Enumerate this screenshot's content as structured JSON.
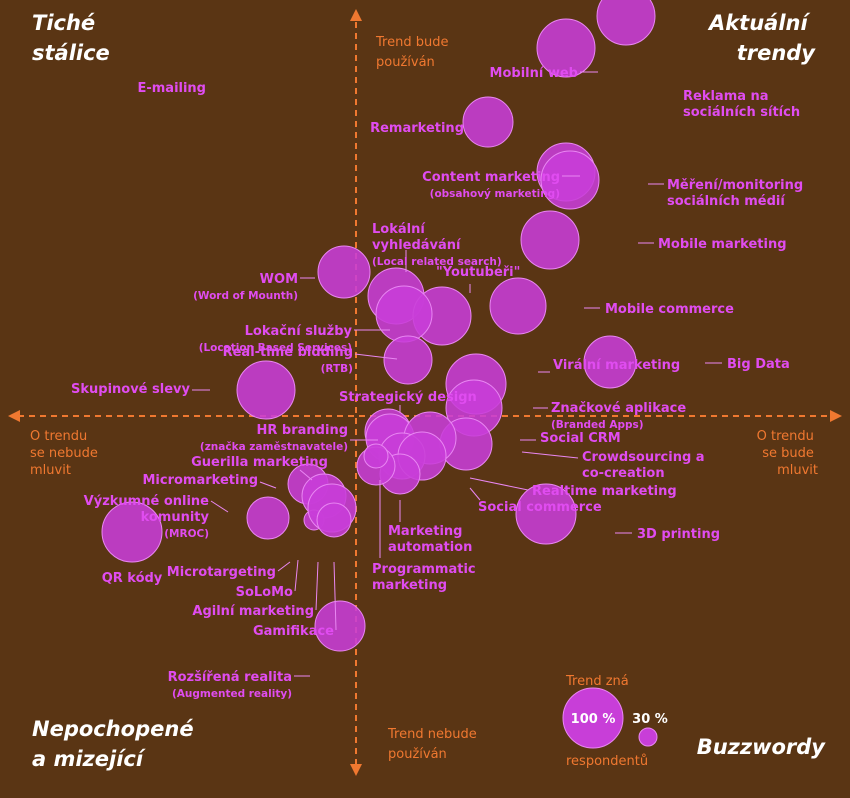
{
  "chart_data": {
    "type": "bubble-quadrant",
    "title": "",
    "quadrants": {
      "top_left": [
        "Tiché",
        "stálice"
      ],
      "top_right": [
        "Aktuální",
        "trendy"
      ],
      "bottom_left": [
        "Nepochopené",
        "a mizející"
      ],
      "bottom_right": [
        "Buzzwordy"
      ]
    },
    "axis_labels": {
      "top": [
        "Trend bude",
        "používán"
      ],
      "bottom": [
        "Trend nebude",
        "používán"
      ],
      "left": [
        "O trendu",
        "se nebude",
        "mluvit"
      ],
      "right": [
        "O trendu",
        "se bude",
        "mluvit"
      ]
    },
    "legend": {
      "title": "Trend zná",
      "big": "100 %",
      "small": "30 %",
      "footer": "respondentů"
    },
    "items": [
      {
        "name": "E-mailing",
        "x": -2.22,
        "y": 1.76
      },
      {
        "name": "Mobilní web",
        "x": 1.05,
        "y": 1.84
      },
      {
        "name": "Reklama na sociálních sítích",
        "x": 1.35,
        "y": 2.0
      },
      {
        "name": "Remarketing",
        "x": 0.66,
        "y": 1.47
      },
      {
        "name": "Content marketing",
        "sub": "(obsahový marketing)",
        "x": 1.05,
        "y": 1.22
      },
      {
        "name": "Měření/monitoring sociálních médií",
        "x": 1.07,
        "y": 1.18
      },
      {
        "name": "Mobile marketing",
        "x": 0.97,
        "y": 0.88
      },
      {
        "name": "Lokální vyhledávání",
        "sub": "(Local related search)",
        "x": 0.2,
        "y": 0.6
      },
      {
        "name": "\"Youtubeři\"",
        "x": 0.43,
        "y": 0.5
      },
      {
        "name": "WOM",
        "sub": "(Word of Mounth)",
        "x": -0.06,
        "y": 0.72
      },
      {
        "name": "Lokační služby",
        "sub": "(Location Based Services)",
        "x": 0.24,
        "y": 0.51
      },
      {
        "name": "Mobile commerce",
        "x": 0.81,
        "y": 0.55
      },
      {
        "name": "Real-time bidding",
        "sub": "(RTB)",
        "x": 0.26,
        "y": 0.28
      },
      {
        "name": "Big Data",
        "x": 1.27,
        "y": 0.27
      },
      {
        "name": "Virální marketing",
        "x": 0.6,
        "y": 0.16
      },
      {
        "name": "Skupinové slevy",
        "x": -0.45,
        "y": 0.13
      },
      {
        "name": "Značkové aplikace",
        "sub": "(Branded Apps)",
        "x": 0.59,
        "y": 0.04
      },
      {
        "name": "Strategický design",
        "x": 0.16,
        "y": -0.08
      },
      {
        "name": "HR branding",
        "sub": "(značka zaměstnavatele)",
        "x": 0.17,
        "y": -0.11
      },
      {
        "name": "Social CRM",
        "x": 0.55,
        "y": -0.14
      },
      {
        "name": "Crowdsourcing a co-creation",
        "x": 0.37,
        "y": -0.11
      },
      {
        "name": "Guerilla marketing",
        "x": 0.23,
        "y": -0.2
      },
      {
        "name": "Realtime marketing",
        "x": 0.33,
        "y": -0.2
      },
      {
        "name": "Micromarketing",
        "x": -0.24,
        "y": -0.34
      },
      {
        "name": "Marketing automation",
        "x": 0.22,
        "y": -0.29
      },
      {
        "name": "Social commerce",
        "x": 0.1,
        "y": -0.25
      },
      {
        "name": "Programmatic marketing",
        "x": 0.1,
        "y": -0.2
      },
      {
        "name": "Výzkumné online komunity",
        "sub": "(MROC)",
        "x": -0.16,
        "y": -0.4
      },
      {
        "name": "3D printing",
        "x": 0.95,
        "y": -0.49
      },
      {
        "name": "Microtargeting",
        "x": -0.44,
        "y": -0.51
      },
      {
        "name": "SoLoMo",
        "x": -0.21,
        "y": -0.52
      },
      {
        "name": "Agilní marketing",
        "x": -0.12,
        "y": -0.46
      },
      {
        "name": "Gamifikace",
        "x": -0.11,
        "y": -0.52
      },
      {
        "name": "QR kódy",
        "x": -1.12,
        "y": -0.58
      },
      {
        "name": "Rozšířená realita",
        "sub": "(Augmented reality)",
        "x": -0.08,
        "y": -1.05
      }
    ]
  }
}
